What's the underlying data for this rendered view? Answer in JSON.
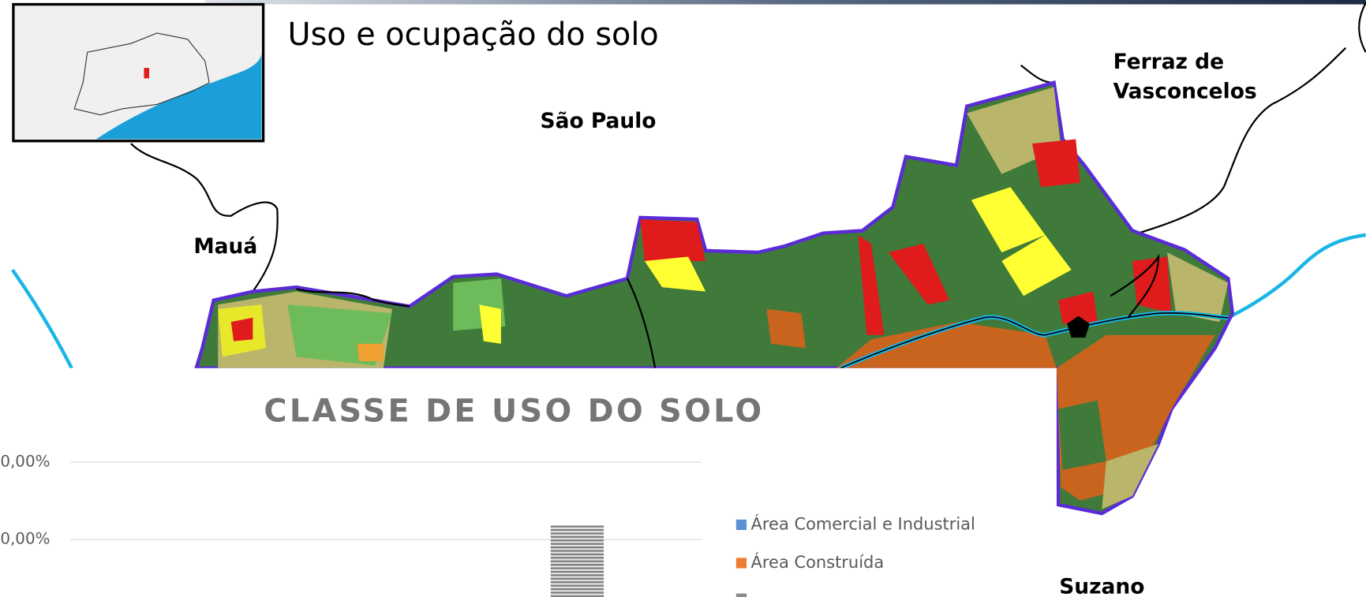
{
  "title": "Uso e ocupação do solo",
  "map_labels": [
    "São Paulo",
    "Mauá",
    "Ferraz de",
    "Vasconcelos",
    "Suzano"
  ],
  "chart": {
    "title": "CLASSE DE USO DO SOLO",
    "tick_labels": [
      "0,00%",
      "0,00%"
    ],
    "legend": [
      "Área Comercial e Industrial",
      "Área Construída"
    ]
  }
}
